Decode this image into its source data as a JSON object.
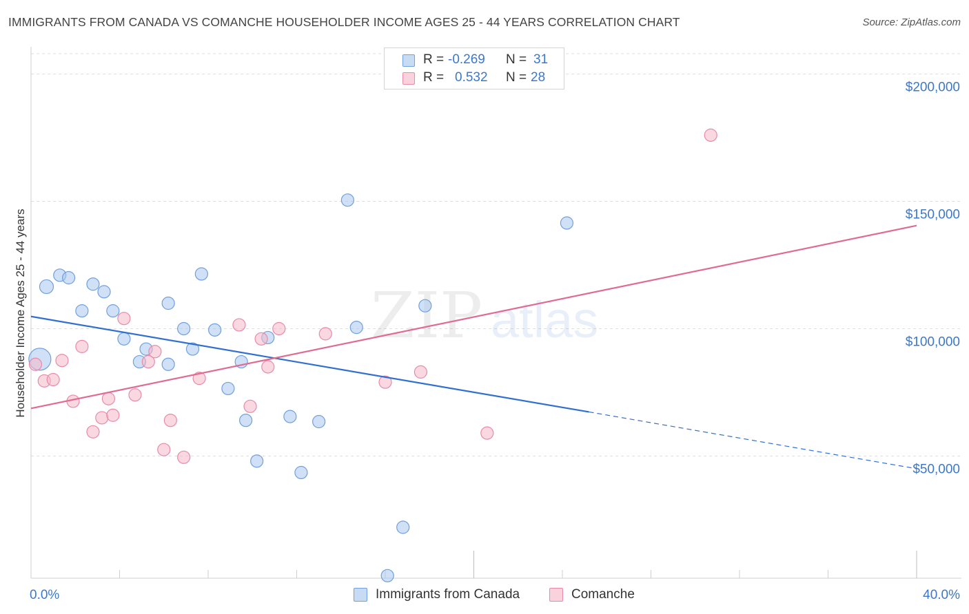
{
  "header": {
    "title": "IMMIGRANTS FROM CANADA VS COMANCHE HOUSEHOLDER INCOME AGES 25 - 44 YEARS CORRELATION CHART",
    "source": "Source: ZipAtlas.com"
  },
  "watermark": {
    "part1": "ZIP",
    "part2": "atlas"
  },
  "stats_box": {
    "rows": [
      {
        "r_label": "R =",
        "r_value": "-0.269",
        "n_label": "N =",
        "n_value": "31",
        "color": "#aac8f0"
      },
      {
        "r_label": "R =",
        "r_value": "0.532",
        "n_label": "N =",
        "n_value": "28",
        "color": "#f6b8cb"
      }
    ]
  },
  "legend": {
    "items": [
      {
        "label": "Immigrants from Canada",
        "color": "#aac8f0"
      },
      {
        "label": "Comanche",
        "color": "#f6b8cb"
      }
    ]
  },
  "colors": {
    "blue_fill": "#aac8f0",
    "blue_stroke": "#6f9fdc",
    "blue_line": "#2f6fcf",
    "pink_fill": "#f6b8cb",
    "pink_stroke": "#e88aa6",
    "pink_line": "#e06a92",
    "tick_label": "#3b78c9",
    "grid": "#dddddd"
  },
  "chart_data": {
    "type": "scatter",
    "title": "IMMIGRANTS FROM CANADA VS COMANCHE HOUSEHOLDER INCOME AGES 25 - 44 YEARS CORRELATION CHART",
    "xlabel": "",
    "ylabel": "Householder Income Ages 25 - 44 years",
    "xlim": [
      0,
      40
    ],
    "ylim": [
      2000,
      208000
    ],
    "x_tick_labels": [
      "0.0%",
      "40.0%"
    ],
    "y_ticks": [
      50000,
      100000,
      150000,
      200000
    ],
    "y_tick_labels": [
      "$50,000",
      "$100,000",
      "$150,000",
      "$200,000"
    ],
    "grid": true,
    "legend_position": "bottom-center",
    "series": [
      {
        "name": "Immigrants from Canada",
        "points": [
          [
            0.4,
            88000,
            16
          ],
          [
            0.7,
            116500,
            10
          ],
          [
            1.3,
            121000,
            9
          ],
          [
            1.7,
            120000,
            9
          ],
          [
            2.3,
            107000,
            9
          ],
          [
            2.8,
            117500,
            9
          ],
          [
            3.3,
            114500,
            9
          ],
          [
            3.7,
            107000,
            9
          ],
          [
            4.2,
            96000,
            9
          ],
          [
            4.9,
            87000,
            9
          ],
          [
            5.2,
            92000,
            9
          ],
          [
            6.2,
            110000,
            9
          ],
          [
            6.2,
            86000,
            9
          ],
          [
            6.9,
            100000,
            9
          ],
          [
            7.3,
            92000,
            9
          ],
          [
            7.7,
            121500,
            9
          ],
          [
            8.3,
            99500,
            9
          ],
          [
            8.9,
            76500,
            9
          ],
          [
            9.5,
            87000,
            9
          ],
          [
            9.7,
            64000,
            9
          ],
          [
            10.2,
            48000,
            9
          ],
          [
            10.7,
            96500,
            9
          ],
          [
            11.7,
            65500,
            9
          ],
          [
            12.2,
            43500,
            9
          ],
          [
            13.0,
            63500,
            9
          ],
          [
            14.3,
            150500,
            9
          ],
          [
            14.7,
            100500,
            9
          ],
          [
            16.8,
            22000,
            9
          ],
          [
            17.8,
            109000,
            9
          ],
          [
            24.2,
            141500,
            9
          ],
          [
            16.1,
            3000,
            9
          ]
        ],
        "trend_solid": [
          [
            0,
            104800
          ],
          [
            25.2,
            67300
          ]
        ],
        "trend_dashed": [
          [
            25.2,
            67300
          ],
          [
            40,
            45000
          ]
        ]
      },
      {
        "name": "Comanche",
        "points": [
          [
            0.2,
            86000,
            9
          ],
          [
            0.6,
            79500,
            9
          ],
          [
            1.0,
            80000,
            9
          ],
          [
            1.4,
            87500,
            9
          ],
          [
            1.9,
            71500,
            9
          ],
          [
            2.3,
            93000,
            9
          ],
          [
            2.8,
            59500,
            9
          ],
          [
            3.2,
            65000,
            9
          ],
          [
            3.5,
            72500,
            9
          ],
          [
            3.7,
            66000,
            9
          ],
          [
            4.2,
            104000,
            9
          ],
          [
            4.7,
            74000,
            9
          ],
          [
            5.3,
            87000,
            9
          ],
          [
            5.6,
            91000,
            9
          ],
          [
            6.0,
            52500,
            9
          ],
          [
            6.3,
            64000,
            9
          ],
          [
            6.9,
            49500,
            9
          ],
          [
            7.6,
            80500,
            9
          ],
          [
            9.4,
            101500,
            9
          ],
          [
            9.9,
            69500,
            9
          ],
          [
            10.4,
            96000,
            9
          ],
          [
            10.7,
            85000,
            9
          ],
          [
            11.2,
            100000,
            9
          ],
          [
            13.3,
            98000,
            9
          ],
          [
            16.0,
            79000,
            9
          ],
          [
            17.6,
            83000,
            9
          ],
          [
            20.6,
            59000,
            9
          ],
          [
            30.7,
            176000,
            9
          ]
        ],
        "trend_solid": [
          [
            0,
            68700
          ],
          [
            40,
            140500
          ]
        ]
      }
    ]
  }
}
